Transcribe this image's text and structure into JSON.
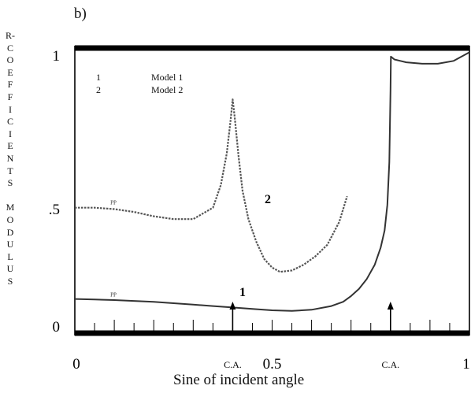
{
  "chart_data": {
    "type": "line",
    "panel_label": "b)",
    "title": "",
    "xlabel": "Sine of incident angle",
    "ylabel": "R-COEFFICIENTS MODULUS",
    "xlim": [
      0,
      1
    ],
    "ylim": [
      0,
      1
    ],
    "x_ticks": [
      "0",
      "0.5",
      "1"
    ],
    "y_ticks": [
      "0",
      ".5",
      "1"
    ],
    "critical_angle_label": "C.A.",
    "critical_angles": [
      0.4,
      0.8
    ],
    "legend": [
      {
        "id": "1",
        "label": "Model 1"
      },
      {
        "id": "2",
        "label": "Model 2"
      }
    ],
    "series": [
      {
        "name": "Model 1",
        "curve_label": "1",
        "tag": "PP",
        "style": "solid",
        "x": [
          0,
          0.05,
          0.1,
          0.15,
          0.2,
          0.25,
          0.3,
          0.35,
          0.4,
          0.45,
          0.5,
          0.55,
          0.6,
          0.65,
          0.68,
          0.7,
          0.72,
          0.74,
          0.76,
          0.775,
          0.785,
          0.792,
          0.797,
          0.8,
          0.801,
          0.81,
          0.84,
          0.88,
          0.92,
          0.96,
          1.0
        ],
        "y": [
          0.12,
          0.118,
          0.116,
          0.113,
          0.11,
          0.105,
          0.1,
          0.095,
          0.09,
          0.085,
          0.08,
          0.078,
          0.082,
          0.095,
          0.11,
          0.13,
          0.155,
          0.19,
          0.24,
          0.3,
          0.36,
          0.45,
          0.6,
          0.85,
          0.97,
          0.96,
          0.95,
          0.945,
          0.945,
          0.955,
          0.985
        ]
      },
      {
        "name": "Model 2",
        "curve_label": "2",
        "tag": "PP",
        "style": "dashed",
        "x": [
          0,
          0.05,
          0.1,
          0.15,
          0.2,
          0.25,
          0.3,
          0.35,
          0.37,
          0.385,
          0.395,
          0.4,
          0.405,
          0.415,
          0.425,
          0.44,
          0.46,
          0.48,
          0.5,
          0.52,
          0.55,
          0.58,
          0.61,
          0.64,
          0.67,
          0.69
        ],
        "y": [
          0.44,
          0.44,
          0.435,
          0.425,
          0.41,
          0.4,
          0.4,
          0.44,
          0.52,
          0.63,
          0.75,
          0.82,
          0.76,
          0.62,
          0.5,
          0.4,
          0.32,
          0.26,
          0.23,
          0.215,
          0.22,
          0.24,
          0.27,
          0.31,
          0.39,
          0.48
        ]
      }
    ],
    "grid": false
  }
}
